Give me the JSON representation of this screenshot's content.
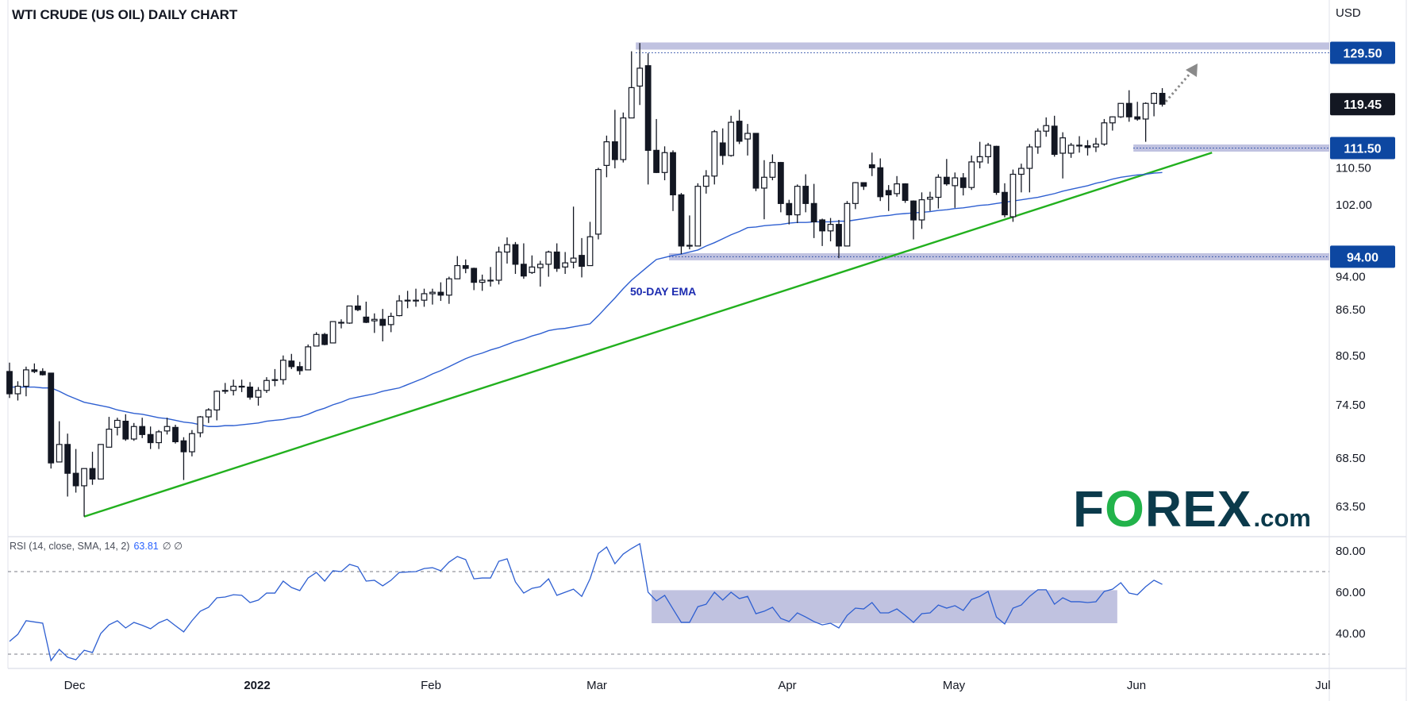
{
  "header": {
    "title": "WTI CRUDE (US OIL) DAILY CHART",
    "currency": "USD"
  },
  "logo": {
    "brand": "FOREX",
    "suffix": ".com"
  },
  "chart_data": {
    "type": "candlestick",
    "title": "WTI CRUDE (US OIL) DAILY CHART",
    "y_unit": "USD",
    "y_scale": "log",
    "y_range": [
      61.5,
      137
    ],
    "y_ticks": [
      "63.50",
      "68.50",
      "74.50",
      "80.50",
      "86.50",
      "94.00",
      "102.00",
      "110.50"
    ],
    "x_tick_labels": [
      {
        "label": "Dec",
        "bold": false
      },
      {
        "label": "2022",
        "bold": true
      },
      {
        "label": "Feb",
        "bold": false
      },
      {
        "label": "Mar",
        "bold": false
      },
      {
        "label": "Apr",
        "bold": false
      },
      {
        "label": "May",
        "bold": false
      },
      {
        "label": "Jun",
        "bold": false
      },
      {
        "label": "Jul",
        "bold": false
      }
    ],
    "candles_ohlc": [
      [
        78.5,
        79.6,
        75.3,
        75.8
      ],
      [
        75.8,
        77.3,
        75.0,
        76.7
      ],
      [
        76.7,
        79.1,
        75.5,
        78.7
      ],
      [
        78.7,
        79.5,
        78.3,
        78.5
      ],
      [
        78.5,
        78.9,
        78.0,
        78.1
      ],
      [
        78.3,
        78.3,
        67.4,
        68.0
      ],
      [
        68.1,
        72.6,
        68.1,
        70.0
      ],
      [
        70.0,
        71.2,
        64.5,
        66.9
      ],
      [
        66.9,
        69.5,
        64.9,
        65.6
      ],
      [
        65.6,
        67.4,
        62.5,
        67.4
      ],
      [
        67.4,
        69.2,
        65.7,
        66.3
      ],
      [
        66.3,
        70.0,
        66.3,
        70.0
      ],
      [
        69.7,
        73.1,
        69.7,
        71.7
      ],
      [
        71.9,
        73.0,
        71.0,
        72.7
      ],
      [
        72.6,
        73.4,
        70.4,
        70.6
      ],
      [
        70.6,
        72.4,
        70.4,
        72.0
      ],
      [
        72.0,
        73.0,
        70.7,
        71.1
      ],
      [
        71.1,
        72.0,
        69.5,
        70.2
      ],
      [
        70.2,
        71.6,
        69.5,
        71.4
      ],
      [
        71.5,
        73.0,
        71.1,
        72.0
      ],
      [
        71.9,
        72.2,
        70.1,
        70.3
      ],
      [
        70.4,
        70.8,
        66.2,
        69.2
      ],
      [
        69.2,
        71.6,
        68.7,
        71.2
      ],
      [
        71.3,
        73.2,
        70.8,
        73.1
      ],
      [
        73.1,
        74.1,
        72.4,
        73.9
      ],
      [
        73.9,
        76.2,
        72.7,
        76.1
      ],
      [
        76.1,
        77.1,
        75.8,
        76.2
      ],
      [
        76.2,
        77.5,
        75.6,
        76.7
      ],
      [
        76.7,
        77.5,
        76.0,
        76.6
      ],
      [
        76.6,
        77.2,
        75.1,
        75.4
      ],
      [
        75.4,
        76.6,
        74.4,
        76.2
      ],
      [
        76.2,
        77.8,
        75.9,
        77.4
      ],
      [
        77.4,
        78.8,
        76.7,
        77.5
      ],
      [
        77.5,
        80.5,
        76.9,
        79.9
      ],
      [
        79.8,
        80.7,
        78.8,
        79.1
      ],
      [
        79.1,
        79.7,
        78.1,
        78.6
      ],
      [
        78.7,
        81.9,
        78.7,
        81.6
      ],
      [
        81.7,
        83.5,
        81.7,
        83.2
      ],
      [
        83.2,
        83.4,
        81.8,
        81.9
      ],
      [
        82.1,
        84.9,
        82.1,
        84.9
      ],
      [
        84.8,
        85.2,
        84.0,
        84.8
      ],
      [
        84.7,
        87.0,
        84.6,
        87.0
      ],
      [
        87.0,
        88.5,
        86.3,
        86.5
      ],
      [
        85.5,
        87.6,
        84.7,
        84.8
      ],
      [
        85.0,
        86.0,
        83.4,
        85.2
      ],
      [
        85.2,
        86.6,
        82.3,
        84.4
      ],
      [
        84.5,
        86.1,
        83.5,
        85.6
      ],
      [
        85.7,
        88.5,
        85.6,
        87.7
      ],
      [
        87.8,
        89.1,
        86.7,
        87.7
      ],
      [
        87.7,
        89.4,
        86.9,
        87.8
      ],
      [
        87.8,
        89.4,
        86.9,
        88.7
      ],
      [
        88.7,
        89.4,
        87.2,
        88.9
      ],
      [
        88.9,
        90.3,
        87.7,
        88.5
      ],
      [
        88.5,
        91.1,
        87.3,
        90.8
      ],
      [
        90.8,
        94.1,
        90.8,
        92.7
      ],
      [
        92.7,
        93.6,
        91.6,
        92.3
      ],
      [
        92.3,
        92.4,
        89.2,
        90.3
      ],
      [
        90.3,
        91.4,
        89.1,
        90.6
      ],
      [
        90.6,
        92.5,
        89.7,
        90.6
      ],
      [
        90.6,
        95.5,
        90.0,
        94.7
      ],
      [
        94.7,
        96.9,
        93.0,
        95.8
      ],
      [
        95.8,
        96.2,
        91.5,
        92.9
      ],
      [
        92.9,
        96.0,
        90.8,
        91.2
      ],
      [
        91.7,
        94.2,
        91.5,
        92.5
      ],
      [
        92.4,
        93.4,
        89.7,
        92.9
      ],
      [
        92.9,
        94.9,
        91.1,
        94.7
      ],
      [
        94.7,
        96.0,
        91.8,
        92.3
      ],
      [
        92.5,
        94.7,
        91.5,
        93.1
      ],
      [
        93.2,
        101.7,
        92.3,
        93.8
      ],
      [
        94.2,
        96.8,
        91.0,
        92.6
      ],
      [
        92.7,
        99.3,
        92.7,
        97.0
      ],
      [
        97.4,
        108.1,
        96.6,
        107.8
      ],
      [
        108.5,
        113.7,
        106.5,
        112.6
      ],
      [
        112.6,
        118.4,
        108.0,
        109.5
      ],
      [
        109.5,
        117.9,
        109.0,
        116.9
      ],
      [
        116.9,
        129.8,
        116.9,
        122.6
      ],
      [
        122.9,
        131.5,
        119.3,
        126.4
      ],
      [
        126.9,
        129.4,
        105.3,
        111.1
      ],
      [
        111.1,
        116.7,
        107.2,
        107.3
      ],
      [
        107.3,
        111.8,
        106.0,
        110.7
      ],
      [
        110.7,
        111.1,
        101.0,
        103.6
      ],
      [
        103.6,
        103.9,
        94.4,
        95.6
      ],
      [
        95.6,
        100.3,
        95.1,
        95.7
      ],
      [
        95.6,
        105.5,
        95.6,
        105.0
      ],
      [
        105.0,
        107.7,
        103.8,
        106.7
      ],
      [
        106.7,
        114.7,
        105.3,
        114.4
      ],
      [
        112.4,
        115.0,
        108.6,
        110.2
      ],
      [
        110.2,
        117.3,
        110.0,
        116.1
      ],
      [
        116.3,
        118.4,
        112.2,
        112.7
      ],
      [
        113.1,
        115.8,
        110.2,
        114.1
      ],
      [
        114.1,
        114.1,
        104.2,
        104.7
      ],
      [
        104.7,
        109.4,
        99.7,
        106.5
      ],
      [
        106.5,
        110.4,
        106.0,
        109.0
      ],
      [
        109.0,
        109.1,
        100.8,
        102.2
      ],
      [
        102.2,
        102.8,
        98.9,
        100.4
      ],
      [
        100.4,
        105.3,
        99.1,
        105.0
      ],
      [
        105.0,
        107.0,
        100.8,
        102.2
      ],
      [
        102.2,
        105.4,
        96.8,
        99.3
      ],
      [
        99.6,
        99.8,
        95.6,
        97.9
      ],
      [
        97.9,
        99.9,
        96.3,
        98.9
      ],
      [
        98.9,
        99.6,
        93.8,
        95.6
      ],
      [
        95.6,
        102.6,
        95.6,
        102.2
      ],
      [
        102.2,
        105.7,
        101.3,
        105.6
      ],
      [
        105.6,
        105.6,
        104.4,
        105.0
      ],
      [
        108.6,
        110.7,
        106.7,
        108.1
      ],
      [
        108.1,
        109.7,
        102.6,
        103.3
      ],
      [
        104.3,
        105.2,
        101.0,
        103.6
      ],
      [
        103.8,
        106.7,
        103.3,
        105.4
      ],
      [
        105.4,
        105.5,
        102.3,
        102.7
      ],
      [
        102.6,
        102.7,
        96.6,
        99.6
      ],
      [
        99.6,
        104.0,
        98.2,
        102.8
      ],
      [
        102.9,
        104.1,
        101.0,
        103.2
      ],
      [
        103.2,
        107.0,
        101.4,
        106.5
      ],
      [
        106.5,
        109.6,
        105.1,
        105.4
      ],
      [
        105.1,
        107.3,
        101.5,
        106.4
      ],
      [
        106.4,
        107.2,
        103.5,
        104.8
      ],
      [
        104.8,
        110.2,
        104.4,
        109.1
      ],
      [
        109.1,
        112.6,
        108.0,
        110.0
      ],
      [
        110.0,
        112.4,
        108.8,
        112.0
      ],
      [
        111.8,
        111.9,
        103.6,
        104.0
      ],
      [
        104.0,
        105.5,
        100.0,
        100.4
      ],
      [
        100.1,
        107.8,
        99.3,
        107.0
      ],
      [
        107.0,
        108.8,
        104.0,
        108.0
      ],
      [
        108.0,
        112.2,
        104.0,
        111.7
      ],
      [
        111.7,
        115.0,
        110.5,
        114.5
      ],
      [
        114.5,
        117.0,
        113.5,
        115.5
      ],
      [
        115.4,
        117.3,
        110.0,
        110.4
      ],
      [
        110.6,
        114.3,
        106.3,
        113.3
      ],
      [
        110.6,
        112.4,
        109.8,
        112.0
      ],
      [
        112.0,
        113.6,
        110.7,
        112.0
      ],
      [
        111.9,
        112.9,
        110.2,
        111.6
      ],
      [
        111.7,
        113.3,
        110.8,
        112.2
      ],
      [
        112.2,
        116.7,
        111.9,
        116.0
      ],
      [
        116.0,
        117.2,
        114.6,
        117.1
      ],
      [
        117.1,
        119.6,
        116.9,
        119.6
      ],
      [
        119.6,
        122.1,
        116.2,
        117.1
      ],
      [
        117.1,
        119.9,
        116.4,
        116.7
      ],
      [
        116.7,
        119.8,
        112.6,
        119.6
      ],
      [
        119.6,
        121.7,
        117.2,
        121.5
      ],
      [
        121.5,
        122.5,
        119.0,
        119.45
      ]
    ],
    "ema": {
      "label": "50-DAY EMA",
      "values": [
        76.6,
        76.6,
        76.6,
        76.6,
        76.5,
        76.5,
        76.1,
        75.6,
        75.2,
        74.8,
        74.6,
        74.4,
        74.2,
        73.9,
        73.7,
        73.5,
        73.4,
        73.2,
        73.0,
        72.9,
        72.7,
        72.5,
        72.4,
        72.2,
        72.0,
        72.0,
        72.1,
        72.1,
        72.2,
        72.3,
        72.4,
        72.6,
        72.7,
        72.8,
        73.0,
        73.1,
        73.4,
        73.8,
        74.1,
        74.5,
        74.8,
        75.2,
        75.4,
        75.6,
        75.8,
        76.1,
        76.3,
        76.5,
        76.9,
        77.3,
        77.7,
        78.2,
        78.6,
        79.1,
        79.6,
        80.1,
        80.5,
        80.8,
        81.2,
        81.5,
        81.9,
        82.3,
        82.6,
        83.0,
        83.3,
        83.7,
        83.9,
        84.0,
        84.2,
        84.4,
        84.6,
        85.7,
        86.9,
        88.1,
        89.4,
        90.6,
        91.6,
        92.6,
        93.6,
        93.9,
        94.2,
        94.4,
        94.7,
        95.0,
        95.6,
        96.1,
        96.7,
        97.3,
        97.8,
        98.4,
        98.5,
        98.7,
        98.8,
        98.9,
        99.1,
        99.2,
        99.2,
        99.3,
        99.3,
        99.3,
        99.4,
        99.4,
        99.6,
        99.8,
        100.0,
        100.2,
        100.3,
        100.5,
        100.6,
        100.7,
        100.8,
        100.9,
        101.1,
        101.2,
        101.4,
        101.5,
        101.7,
        101.9,
        102.0,
        102.2,
        102.4,
        102.6,
        102.8,
        103.0,
        103.2,
        103.5,
        103.8,
        104.2,
        104.5,
        104.8,
        105.1,
        105.5,
        105.8,
        106.2,
        106.5,
        106.7,
        106.9,
        107.0,
        107.2,
        107.3
      ]
    },
    "levels": [
      {
        "value": 129.5,
        "label": "129.50",
        "from_bar": 77
      },
      {
        "value": 111.5,
        "label": "111.50",
        "from_bar": 137
      },
      {
        "value": 94.0,
        "label": "94.00",
        "from_bar": 81
      }
    ],
    "last_price": {
      "value": 119.45,
      "label": "119.45"
    },
    "trendline": {
      "start": {
        "bar": 10,
        "price": 62.5
      },
      "end": {
        "bar": 146,
        "price": 110.7
      }
    },
    "rsi": {
      "header": "RSI (14, close, SMA, 14, 2)",
      "value_label": "63.81",
      "extra": "∅ ∅",
      "y_ticks": [
        "80.00",
        "60.00",
        "40.00"
      ],
      "bands": [
        30,
        70
      ],
      "range_box": {
        "from_bar": 79,
        "to_bar": 134,
        "low": 45,
        "high": 61
      },
      "values": [
        36.2,
        39.6,
        46.2,
        45.6,
        45,
        26.9,
        32.3,
        28.5,
        27.3,
        31.9,
        30.8,
        40,
        44.2,
        46.2,
        42.7,
        45.4,
        44,
        42.3,
        45.2,
        46.9,
        43.8,
        40.8,
        46.2,
        50.8,
        52.7,
        57.3,
        57.7,
        58.8,
        58.5,
        55,
        56.2,
        59.6,
        59.6,
        65.4,
        62.3,
        60.8,
        66.9,
        69.6,
        65.4,
        70.4,
        70,
        73.5,
        72.3,
        65.4,
        65.8,
        63.1,
        65.8,
        69.6,
        69.8,
        70,
        71.5,
        71.9,
        70.4,
        74.6,
        77.3,
        75.8,
        66.5,
        66.9,
        66.9,
        75,
        76.2,
        65,
        59.6,
        61.9,
        62.7,
        66.5,
        58.5,
        60,
        61.5,
        58,
        66.5,
        78.8,
        81.9,
        73.8,
        78.5,
        81.2,
        83.5,
        60,
        55.8,
        58.5,
        51.9,
        45.4,
        45.4,
        53,
        54.2,
        60,
        56.2,
        60,
        56.9,
        58,
        49.6,
        50.8,
        52.7,
        47.3,
        45.8,
        50,
        48,
        45.8,
        44.2,
        45,
        42.7,
        48.8,
        52.3,
        51.9,
        55,
        50,
        50,
        51.9,
        48.8,
        45.4,
        49.6,
        50,
        53.8,
        52.3,
        53.5,
        51.2,
        56.5,
        58,
        60.4,
        48,
        44.6,
        52.3,
        53.8,
        58,
        61.2,
        61.2,
        54.2,
        57.3,
        55.4,
        55.4,
        55,
        55.4,
        60.4,
        61.5,
        64.6,
        59.6,
        58.8,
        62.7,
        65.8,
        63.81
      ]
    },
    "projection_arrow": "dotted-up-right",
    "grid": false,
    "colors": {
      "candle_dark": "#131722",
      "candle_light": "#ffffff",
      "ema": "#2e5fd1",
      "trendline": "#22b01e",
      "level_band": "#c0c2e0",
      "level_line": "#1a3fa0",
      "level_badge": "#0d47a1",
      "last_price_badge": "#131722",
      "rsi_line": "#2e5fd1",
      "rsi_box": "#c0c2e0",
      "arrow": "#8a8a8a"
    }
  }
}
